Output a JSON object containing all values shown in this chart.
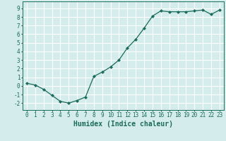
{
  "x": [
    0,
    1,
    2,
    3,
    4,
    5,
    6,
    7,
    8,
    9,
    10,
    11,
    12,
    13,
    14,
    15,
    16,
    17,
    18,
    19,
    20,
    21,
    22,
    23
  ],
  "y": [
    0.3,
    0.1,
    -0.4,
    -1.1,
    -1.8,
    -2.0,
    -1.7,
    -1.3,
    1.1,
    1.6,
    2.2,
    3.0,
    4.4,
    5.4,
    6.7,
    8.1,
    8.7,
    8.6,
    8.6,
    8.6,
    8.7,
    8.8,
    8.3,
    8.8
  ],
  "line_color": "#1a6b5a",
  "marker": "D",
  "marker_size": 2.2,
  "bg_color": "#d4ecec",
  "grid_color": "#ffffff",
  "xlabel": "Humidex (Indice chaleur)",
  "xlim": [
    -0.5,
    23.5
  ],
  "ylim": [
    -2.8,
    9.8
  ],
  "xticks": [
    0,
    1,
    2,
    3,
    4,
    5,
    6,
    7,
    8,
    9,
    10,
    11,
    12,
    13,
    14,
    15,
    16,
    17,
    18,
    19,
    20,
    21,
    22,
    23
  ],
  "yticks": [
    -2,
    -1,
    0,
    1,
    2,
    3,
    4,
    5,
    6,
    7,
    8,
    9
  ],
  "tick_fontsize": 5.5,
  "xlabel_fontsize": 7.0,
  "label_color": "#1a6b5a"
}
